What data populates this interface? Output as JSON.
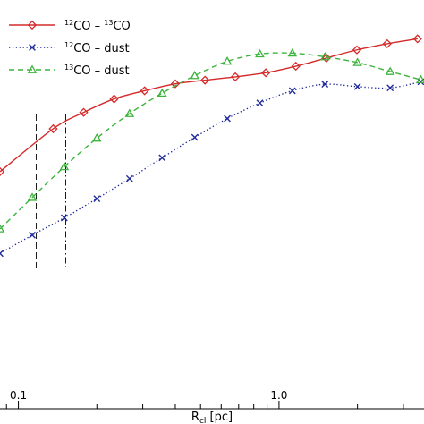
{
  "chart_data": {
    "type": "line",
    "xlabel": "R",
    "xlabel_sub": "cl",
    "xlabel_unit": "[pc]",
    "xscale": "log",
    "xlim": [
      0.085,
      3.6
    ],
    "ylim": [
      0.0,
      1.0
    ],
    "grid": false,
    "legend_position": "top-left",
    "x_tick_labels": [
      {
        "value": 0.1,
        "label": "0.1"
      },
      {
        "value": 1.0,
        "label": "1.0"
      }
    ],
    "vertical_lines": [
      {
        "x": 0.117,
        "style": "dashed"
      },
      {
        "x": 0.152,
        "style": "dashdot"
      }
    ],
    "series": [
      {
        "name": "CO-CO",
        "legend": {
          "iso_a": "12",
          "mol_a": "CO",
          "sep": " – ",
          "iso_b": "13",
          "mol_b": "CO"
        },
        "color": "#d42a2a",
        "marker": "diamond",
        "line_style": "solid",
        "x": [
          0.085,
          0.136,
          0.178,
          0.233,
          0.305,
          0.4,
          0.52,
          0.68,
          0.89,
          1.16,
          1.52,
          1.99,
          2.6,
          3.4
        ],
        "y": [
          0.58,
          0.685,
          0.725,
          0.758,
          0.778,
          0.795,
          0.804,
          0.812,
          0.822,
          0.838,
          0.858,
          0.878,
          0.893,
          0.905
        ]
      },
      {
        "name": "CO-dust",
        "legend": {
          "iso_a": "12",
          "mol_a": "CO",
          "sep": " – ",
          "iso_b": "",
          "mol_b": "dust"
        },
        "color": "#1f2a9a",
        "marker": "x",
        "line_style": "dotted",
        "x": [
          0.085,
          0.113,
          0.15,
          0.2,
          0.267,
          0.356,
          0.475,
          0.633,
          0.844,
          1.125,
          1.5,
          2.0,
          2.67,
          3.5
        ],
        "y": [
          0.38,
          0.425,
          0.467,
          0.514,
          0.563,
          0.614,
          0.664,
          0.71,
          0.748,
          0.778,
          0.794,
          0.788,
          0.785,
          0.8
        ]
      },
      {
        "name": "CO-dust",
        "legend": {
          "iso_a": "13",
          "mol_a": "CO",
          "sep": " – ",
          "iso_b": "",
          "mol_b": "dust"
        },
        "color": "#3cb43c",
        "marker": "triangle",
        "line_style": "dashed",
        "x": [
          0.085,
          0.113,
          0.15,
          0.2,
          0.267,
          0.356,
          0.475,
          0.633,
          0.844,
          1.125,
          1.5,
          2.0,
          2.67,
          3.5
        ],
        "y": [
          0.44,
          0.517,
          0.592,
          0.662,
          0.722,
          0.772,
          0.815,
          0.85,
          0.868,
          0.87,
          0.861,
          0.847,
          0.825,
          0.805
        ]
      }
    ]
  }
}
